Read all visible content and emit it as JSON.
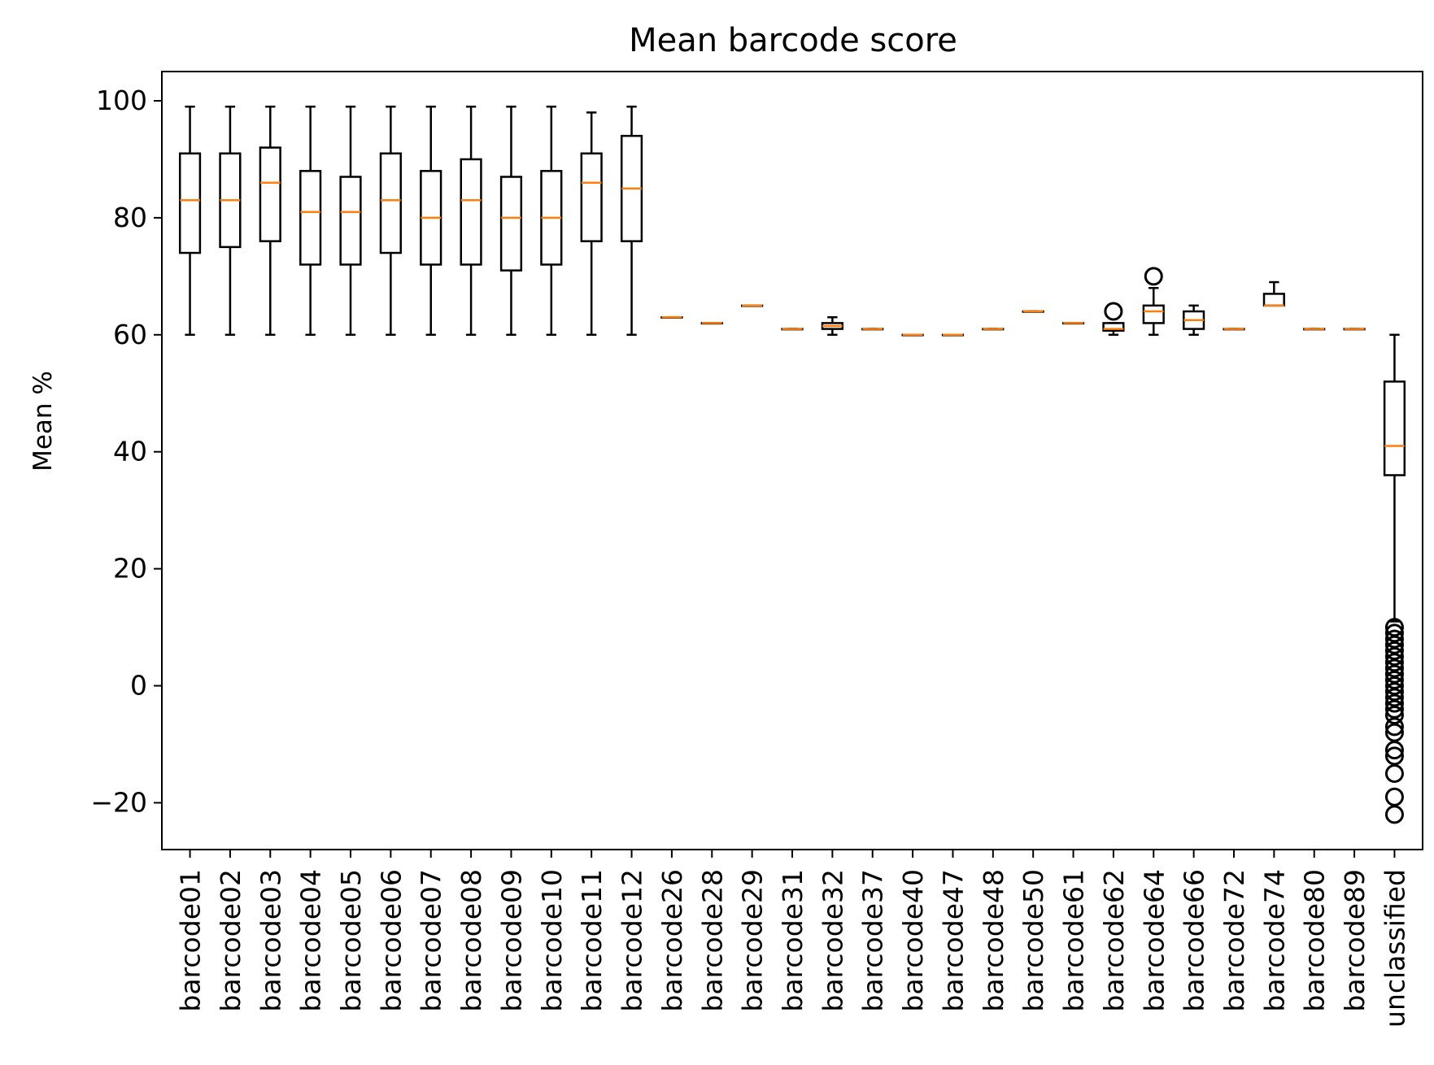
{
  "chart_data": {
    "type": "box",
    "title": "Mean barcode score",
    "xlabel": "",
    "ylabel": "Mean %",
    "ylim": [
      -28,
      105
    ],
    "yticks": [
      -20,
      0,
      20,
      40,
      60,
      80,
      100
    ],
    "grid": false,
    "colors": {
      "box": "#000000",
      "median": "#ff7f0e",
      "flier": "#000000"
    },
    "categories": [
      "barcode01",
      "barcode02",
      "barcode03",
      "barcode04",
      "barcode05",
      "barcode06",
      "barcode07",
      "barcode08",
      "barcode09",
      "barcode10",
      "barcode11",
      "barcode12",
      "barcode26",
      "barcode28",
      "barcode29",
      "barcode31",
      "barcode32",
      "barcode37",
      "barcode40",
      "barcode47",
      "barcode48",
      "barcode50",
      "barcode61",
      "barcode62",
      "barcode64",
      "barcode66",
      "barcode72",
      "barcode74",
      "barcode80",
      "barcode89",
      "unclassified"
    ],
    "boxes": [
      {
        "label": "barcode01",
        "whislo": 60,
        "q1": 74,
        "med": 83,
        "q3": 91,
        "whishi": 99,
        "fliers": []
      },
      {
        "label": "barcode02",
        "whislo": 60,
        "q1": 75,
        "med": 83,
        "q3": 91,
        "whishi": 99,
        "fliers": []
      },
      {
        "label": "barcode03",
        "whislo": 60,
        "q1": 76,
        "med": 86,
        "q3": 92,
        "whishi": 99,
        "fliers": []
      },
      {
        "label": "barcode04",
        "whislo": 60,
        "q1": 72,
        "med": 81,
        "q3": 88,
        "whishi": 99,
        "fliers": []
      },
      {
        "label": "barcode05",
        "whislo": 60,
        "q1": 72,
        "med": 81,
        "q3": 87,
        "whishi": 99,
        "fliers": []
      },
      {
        "label": "barcode06",
        "whislo": 60,
        "q1": 74,
        "med": 83,
        "q3": 91,
        "whishi": 99,
        "fliers": []
      },
      {
        "label": "barcode07",
        "whislo": 60,
        "q1": 72,
        "med": 80,
        "q3": 88,
        "whishi": 99,
        "fliers": []
      },
      {
        "label": "barcode08",
        "whislo": 60,
        "q1": 72,
        "med": 83,
        "q3": 90,
        "whishi": 99,
        "fliers": []
      },
      {
        "label": "barcode09",
        "whislo": 60,
        "q1": 71,
        "med": 80,
        "q3": 87,
        "whishi": 99,
        "fliers": []
      },
      {
        "label": "barcode10",
        "whislo": 60,
        "q1": 72,
        "med": 80,
        "q3": 88,
        "whishi": 99,
        "fliers": []
      },
      {
        "label": "barcode11",
        "whislo": 60,
        "q1": 76,
        "med": 86,
        "q3": 91,
        "whishi": 98,
        "fliers": []
      },
      {
        "label": "barcode12",
        "whislo": 60,
        "q1": 76,
        "med": 85,
        "q3": 94,
        "whishi": 99,
        "fliers": []
      },
      {
        "label": "barcode26",
        "whislo": 63,
        "q1": 63,
        "med": 63,
        "q3": 63,
        "whishi": 63,
        "fliers": []
      },
      {
        "label": "barcode28",
        "whislo": 62,
        "q1": 62,
        "med": 62,
        "q3": 62,
        "whishi": 62,
        "fliers": []
      },
      {
        "label": "barcode29",
        "whislo": 65,
        "q1": 65,
        "med": 65,
        "q3": 65,
        "whishi": 65,
        "fliers": []
      },
      {
        "label": "barcode31",
        "whislo": 61,
        "q1": 61,
        "med": 61,
        "q3": 61,
        "whishi": 61,
        "fliers": []
      },
      {
        "label": "barcode32",
        "whislo": 60,
        "q1": 61,
        "med": 61.5,
        "q3": 62,
        "whishi": 63,
        "fliers": []
      },
      {
        "label": "barcode37",
        "whislo": 61,
        "q1": 61,
        "med": 61,
        "q3": 61,
        "whishi": 61,
        "fliers": []
      },
      {
        "label": "barcode40",
        "whislo": 60,
        "q1": 60,
        "med": 60,
        "q3": 60,
        "whishi": 60,
        "fliers": []
      },
      {
        "label": "barcode47",
        "whislo": 60,
        "q1": 60,
        "med": 60,
        "q3": 60,
        "whishi": 60,
        "fliers": []
      },
      {
        "label": "barcode48",
        "whislo": 61,
        "q1": 61,
        "med": 61,
        "q3": 61,
        "whishi": 61,
        "fliers": []
      },
      {
        "label": "barcode50",
        "whislo": 64,
        "q1": 64,
        "med": 64,
        "q3": 64,
        "whishi": 64,
        "fliers": []
      },
      {
        "label": "barcode61",
        "whislo": 62,
        "q1": 62,
        "med": 62,
        "q3": 62,
        "whishi": 62,
        "fliers": []
      },
      {
        "label": "barcode62",
        "whislo": 60,
        "q1": 60.7,
        "med": 61,
        "q3": 62,
        "whishi": 62,
        "fliers": [
          64
        ]
      },
      {
        "label": "barcode64",
        "whislo": 60,
        "q1": 62,
        "med": 64,
        "q3": 65,
        "whishi": 68,
        "fliers": [
          70
        ]
      },
      {
        "label": "barcode66",
        "whislo": 60,
        "q1": 61,
        "med": 62.5,
        "q3": 64,
        "whishi": 65,
        "fliers": []
      },
      {
        "label": "barcode72",
        "whislo": 61,
        "q1": 61,
        "med": 61,
        "q3": 61,
        "whishi": 61,
        "fliers": []
      },
      {
        "label": "barcode74",
        "whislo": 65,
        "q1": 65,
        "med": 65,
        "q3": 67,
        "whishi": 69,
        "fliers": []
      },
      {
        "label": "barcode80",
        "whislo": 61,
        "q1": 61,
        "med": 61,
        "q3": 61,
        "whishi": 61,
        "fliers": []
      },
      {
        "label": "barcode89",
        "whislo": 61,
        "q1": 61,
        "med": 61,
        "q3": 61,
        "whishi": 61,
        "fliers": []
      },
      {
        "label": "unclassified",
        "whislo": 11,
        "q1": 36,
        "med": 41,
        "q3": 52,
        "whishi": 60,
        "fliers": [
          10,
          9,
          8,
          7,
          6,
          5,
          4,
          3,
          2,
          1,
          0,
          -1,
          -2,
          -3,
          -4,
          -5,
          -7,
          -8,
          -11,
          -12,
          -15,
          -19,
          -22
        ]
      }
    ]
  }
}
